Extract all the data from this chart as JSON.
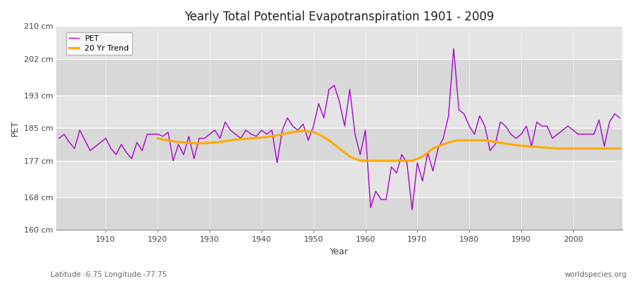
{
  "title": "Yearly Total Potential Evapotranspiration 1901 - 2009",
  "ylabel": "PET",
  "xlabel": "Year",
  "subtitle_left": "Latitude -6.75 Longitude -77.75",
  "subtitle_right": "worldspecies.org",
  "ylim": [
    160,
    210
  ],
  "yticks": [
    160,
    168,
    177,
    185,
    193,
    202,
    210
  ],
  "ytick_labels": [
    "160 cm",
    "168 cm",
    "177 cm",
    "185 cm",
    "193 cm",
    "202 cm",
    "210 cm"
  ],
  "bg_color": "#f0f0f0",
  "plot_bg_color": "#e0e0e0",
  "grid_color": "#ffffff",
  "pet_color": "#aa00cc",
  "trend_color": "#ffaa00",
  "legend_pet": "PET",
  "legend_trend": "20 Yr Trend",
  "years": [
    1901,
    1902,
    1903,
    1904,
    1905,
    1906,
    1907,
    1908,
    1909,
    1910,
    1911,
    1912,
    1913,
    1914,
    1915,
    1916,
    1917,
    1918,
    1919,
    1920,
    1921,
    1922,
    1923,
    1924,
    1925,
    1926,
    1927,
    1928,
    1929,
    1930,
    1931,
    1932,
    1933,
    1934,
    1935,
    1936,
    1937,
    1938,
    1939,
    1940,
    1941,
    1942,
    1943,
    1944,
    1945,
    1946,
    1947,
    1948,
    1949,
    1950,
    1951,
    1952,
    1953,
    1954,
    1955,
    1956,
    1957,
    1958,
    1959,
    1960,
    1961,
    1962,
    1963,
    1964,
    1965,
    1966,
    1967,
    1968,
    1969,
    1970,
    1971,
    1972,
    1973,
    1974,
    1975,
    1976,
    1977,
    1978,
    1979,
    1980,
    1981,
    1982,
    1983,
    1984,
    1985,
    1986,
    1987,
    1988,
    1989,
    1990,
    1991,
    1992,
    1993,
    1994,
    1995,
    1996,
    1997,
    1998,
    1999,
    2000,
    2001,
    2002,
    2003,
    2004,
    2005,
    2006,
    2007,
    2008,
    2009
  ],
  "pet_values": [
    182.5,
    183.5,
    181.5,
    180.0,
    184.5,
    182.0,
    179.5,
    180.5,
    181.5,
    182.5,
    180.0,
    178.5,
    181.0,
    179.0,
    177.5,
    181.5,
    179.5,
    183.5,
    183.5,
    183.5,
    183.0,
    184.0,
    177.0,
    181.0,
    178.5,
    183.0,
    177.5,
    182.5,
    182.5,
    183.5,
    184.5,
    182.5,
    186.5,
    184.5,
    183.5,
    182.5,
    184.5,
    183.5,
    183.0,
    184.5,
    183.5,
    184.5,
    176.5,
    184.5,
    187.5,
    185.5,
    184.5,
    186.0,
    182.0,
    185.5,
    191.0,
    187.5,
    194.5,
    195.5,
    191.5,
    185.5,
    194.5,
    183.5,
    178.5,
    184.5,
    165.5,
    169.5,
    167.5,
    167.5,
    175.5,
    174.0,
    178.5,
    176.5,
    165.0,
    176.5,
    172.0,
    179.0,
    174.5,
    180.0,
    182.5,
    188.0,
    204.5,
    189.5,
    188.5,
    185.5,
    183.5,
    188.0,
    185.5,
    179.5,
    181.0,
    186.5,
    185.5,
    183.5,
    182.5,
    183.5,
    185.5,
    180.5,
    186.5,
    185.5,
    185.5,
    182.5,
    183.5,
    184.5,
    185.5,
    184.5,
    183.5,
    183.5,
    183.5,
    183.5,
    187.0,
    180.5,
    186.5,
    188.5,
    187.5
  ],
  "trend_values": [
    null,
    null,
    null,
    null,
    null,
    null,
    null,
    null,
    null,
    null,
    null,
    null,
    null,
    null,
    null,
    null,
    null,
    null,
    null,
    182.5,
    182.2,
    182.0,
    181.8,
    181.6,
    181.5,
    181.4,
    181.3,
    181.3,
    181.3,
    181.4,
    181.5,
    181.6,
    181.8,
    182.0,
    182.2,
    182.3,
    182.4,
    182.5,
    182.6,
    182.7,
    182.8,
    183.0,
    183.2,
    183.5,
    183.8,
    184.0,
    184.2,
    184.3,
    184.2,
    184.0,
    183.5,
    182.8,
    182.0,
    181.0,
    180.0,
    179.0,
    178.0,
    177.5,
    177.0,
    177.0,
    177.0,
    177.0,
    177.0,
    177.0,
    177.0,
    177.0,
    177.0,
    177.0,
    177.0,
    177.5,
    178.0,
    179.0,
    180.0,
    180.5,
    181.0,
    181.5,
    181.8,
    182.0,
    182.0,
    182.0,
    182.0,
    182.0,
    182.0,
    181.8,
    181.6,
    181.4,
    181.2,
    181.0,
    180.8,
    180.7,
    180.6,
    180.5,
    180.4,
    180.3,
    180.2,
    180.1,
    180.0,
    180.0,
    180.0,
    180.0,
    180.0,
    180.0,
    180.0,
    180.0,
    180.0,
    180.0,
    180.0,
    180.0,
    180.0
  ]
}
